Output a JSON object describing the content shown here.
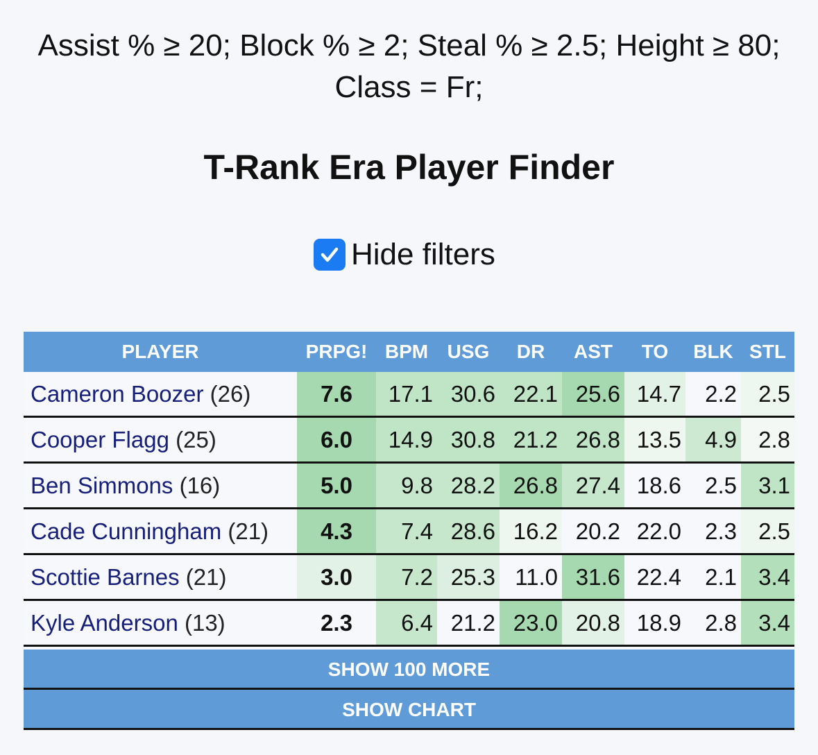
{
  "filters": [
    "Assist % ≥ 20; Block % ≥ 2; Steal % ≥ 2.5; Height ≥ 80;",
    "Class = Fr;"
  ],
  "title": "T-Rank Era Player Finder",
  "checkbox": {
    "label": "Hide filters",
    "checked": true
  },
  "table": {
    "headers": [
      "PLAYER",
      "PRPG!",
      "BPM",
      "USG",
      "DR",
      "AST",
      "TO",
      "BLK",
      "STL"
    ],
    "rows": [
      {
        "name": "Cameron Boozer",
        "rank": "(26)",
        "cells": [
          "7.6",
          "17.1",
          "30.6",
          "22.1",
          "25.6",
          "14.7",
          "2.2",
          "2.5"
        ],
        "shades": [
          "#a6d9b0",
          "#bfe4c6",
          "#bfe4c6",
          "#bfe4c6",
          "#a6d9b0",
          "#e3f2e6",
          "#f7f8fc",
          "#eef6f0"
        ]
      },
      {
        "name": "Cooper Flagg",
        "rank": "(25)",
        "cells": [
          "6.0",
          "14.9",
          "30.8",
          "21.2",
          "26.8",
          "13.5",
          "4.9",
          "2.8"
        ],
        "shades": [
          "#a6d9b0",
          "#bfe4c6",
          "#bfe4c6",
          "#bfe4c6",
          "#bfe4c6",
          "#eef6f0",
          "#cde9d2",
          "#f4f8f5"
        ]
      },
      {
        "name": "Ben Simmons",
        "rank": "(16)",
        "cells": [
          "5.0",
          "9.8",
          "28.2",
          "26.8",
          "27.4",
          "18.6",
          "2.5",
          "3.1"
        ],
        "shades": [
          "#a6d9b0",
          "#c6e7cc",
          "#c6e7cc",
          "#a6d9b0",
          "#c6e7cc",
          "#f7f8fc",
          "#f7f8fc",
          "#bfe4c6"
        ]
      },
      {
        "name": "Cade Cunningham",
        "rank": "(21)",
        "cells": [
          "4.3",
          "7.4",
          "28.6",
          "16.2",
          "20.2",
          "22.0",
          "2.3",
          "2.5"
        ],
        "shades": [
          "#a6d9b0",
          "#c6e7cc",
          "#c6e7cc",
          "#eef6f0",
          "#f7f8fc",
          "#f7f8fc",
          "#f7f8fc",
          "#eef6f0"
        ]
      },
      {
        "name": "Scottie Barnes",
        "rank": "(21)",
        "cells": [
          "3.0",
          "7.2",
          "25.3",
          "11.0",
          "31.6",
          "22.4",
          "2.1",
          "3.4"
        ],
        "shades": [
          "#e3f2e6",
          "#c6e7cc",
          "#dcefe0",
          "#f7f8fc",
          "#a6d9b0",
          "#f7f8fc",
          "#f7f8fc",
          "#b3dfbb"
        ]
      },
      {
        "name": "Kyle Anderson",
        "rank": "(13)",
        "cells": [
          "2.3",
          "6.4",
          "21.2",
          "23.0",
          "20.8",
          "18.9",
          "2.8",
          "3.4"
        ],
        "shades": [
          "#f7f8fc",
          "#c6e7cc",
          "#f7f8fc",
          "#a6d9b0",
          "#e3f2e6",
          "#f7f8fc",
          "#f7f8fc",
          "#b3dfbb"
        ]
      }
    ]
  },
  "buttons": [
    "SHOW 100 MORE",
    "SHOW CHART"
  ]
}
